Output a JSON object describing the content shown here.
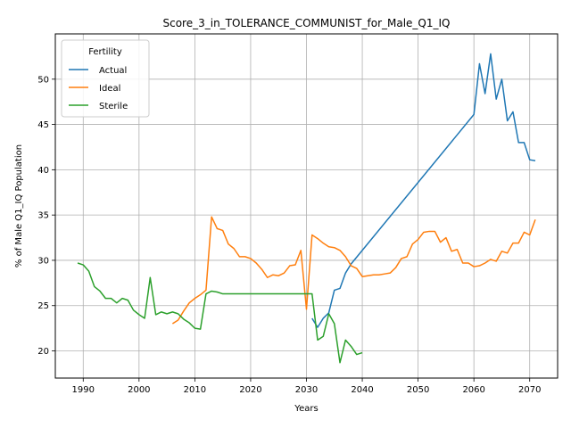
{
  "chart_data": {
    "type": "line",
    "title": "Score_3_in_TOLERANCE_COMMUNIST_for_Male_Q1_IQ",
    "xlabel": "Years",
    "ylabel": "% of Male Q1_IQ Population",
    "xlim": [
      1985,
      2075
    ],
    "ylim": [
      17,
      55
    ],
    "xticks": [
      1990,
      2000,
      2010,
      2020,
      2030,
      2040,
      2050,
      2060,
      2070
    ],
    "yticks": [
      20,
      25,
      30,
      35,
      40,
      45,
      50
    ],
    "grid": true,
    "legend": {
      "title": "Fertility",
      "placement": "top-left"
    },
    "series": [
      {
        "name": "Actual",
        "color": "#1f77b4",
        "points": [
          [
            2031,
            23.6
          ],
          [
            2032,
            22.6
          ],
          [
            2033,
            23.6
          ],
          [
            2034,
            24.2
          ],
          [
            2035,
            26.7
          ],
          [
            2036,
            26.9
          ],
          [
            2037,
            28.6
          ],
          [
            2038,
            29.6
          ],
          [
            2060,
            46.1
          ],
          [
            2061,
            51.7
          ],
          [
            2062,
            48.4
          ],
          [
            2063,
            52.8
          ],
          [
            2064,
            47.8
          ],
          [
            2065,
            50.0
          ],
          [
            2066,
            45.4
          ],
          [
            2067,
            46.4
          ],
          [
            2068,
            43.0
          ],
          [
            2069,
            43.0
          ],
          [
            2070,
            41.1
          ],
          [
            2071,
            41.0
          ]
        ]
      },
      {
        "name": "Ideal",
        "color": "#ff7f0e",
        "points": [
          [
            2006,
            23.0
          ],
          [
            2007,
            23.4
          ],
          [
            2008,
            24.4
          ],
          [
            2009,
            25.3
          ],
          [
            2010,
            25.8
          ],
          [
            2011,
            26.2
          ],
          [
            2012,
            26.7
          ],
          [
            2013,
            34.8
          ],
          [
            2014,
            33.5
          ],
          [
            2015,
            33.3
          ],
          [
            2016,
            31.8
          ],
          [
            2017,
            31.3
          ],
          [
            2018,
            30.4
          ],
          [
            2019,
            30.4
          ],
          [
            2020,
            30.2
          ],
          [
            2021,
            29.7
          ],
          [
            2022,
            29.0
          ],
          [
            2023,
            28.1
          ],
          [
            2024,
            28.4
          ],
          [
            2025,
            28.3
          ],
          [
            2026,
            28.6
          ],
          [
            2027,
            29.4
          ],
          [
            2028,
            29.5
          ],
          [
            2029,
            31.1
          ],
          [
            2030,
            24.6
          ],
          [
            2031,
            32.8
          ],
          [
            2032,
            32.4
          ],
          [
            2033,
            31.9
          ],
          [
            2034,
            31.5
          ],
          [
            2035,
            31.4
          ],
          [
            2036,
            31.1
          ],
          [
            2037,
            30.4
          ],
          [
            2038,
            29.4
          ],
          [
            2039,
            29.1
          ],
          [
            2040,
            28.2
          ],
          [
            2041,
            28.3
          ],
          [
            2042,
            28.4
          ],
          [
            2043,
            28.4
          ],
          [
            2044,
            28.5
          ],
          [
            2045,
            28.6
          ],
          [
            2046,
            29.2
          ],
          [
            2047,
            30.2
          ],
          [
            2048,
            30.4
          ],
          [
            2049,
            31.8
          ],
          [
            2050,
            32.3
          ],
          [
            2051,
            33.1
          ],
          [
            2052,
            33.2
          ],
          [
            2053,
            33.2
          ],
          [
            2054,
            32.0
          ],
          [
            2055,
            32.5
          ],
          [
            2056,
            31.0
          ],
          [
            2057,
            31.2
          ],
          [
            2058,
            29.7
          ],
          [
            2059,
            29.7
          ],
          [
            2060,
            29.3
          ],
          [
            2061,
            29.4
          ],
          [
            2062,
            29.7
          ],
          [
            2063,
            30.1
          ],
          [
            2064,
            29.9
          ],
          [
            2065,
            31.0
          ],
          [
            2066,
            30.8
          ],
          [
            2067,
            31.9
          ],
          [
            2068,
            31.9
          ],
          [
            2069,
            33.1
          ],
          [
            2070,
            32.8
          ],
          [
            2071,
            34.5
          ]
        ]
      },
      {
        "name": "Sterile",
        "color": "#2ca02c",
        "points": [
          [
            1989,
            29.7
          ],
          [
            1990,
            29.5
          ],
          [
            1991,
            28.8
          ],
          [
            1992,
            27.1
          ],
          [
            1993,
            26.6
          ],
          [
            1994,
            25.8
          ],
          [
            1995,
            25.8
          ],
          [
            1996,
            25.3
          ],
          [
            1997,
            25.8
          ],
          [
            1998,
            25.6
          ],
          [
            1999,
            24.5
          ],
          [
            2000,
            24.0
          ],
          [
            2001,
            23.6
          ],
          [
            2002,
            28.1
          ],
          [
            2003,
            24.0
          ],
          [
            2004,
            24.3
          ],
          [
            2005,
            24.1
          ],
          [
            2006,
            24.3
          ],
          [
            2007,
            24.1
          ],
          [
            2008,
            23.5
          ],
          [
            2009,
            23.1
          ],
          [
            2010,
            22.5
          ],
          [
            2011,
            22.4
          ],
          [
            2012,
            26.3
          ],
          [
            2013,
            26.6
          ],
          [
            2014,
            26.5
          ],
          [
            2015,
            26.3
          ],
          [
            2016,
            26.3
          ],
          [
            2017,
            26.3
          ],
          [
            2018,
            26.3
          ],
          [
            2019,
            26.3
          ],
          [
            2020,
            26.3
          ],
          [
            2021,
            26.3
          ],
          [
            2022,
            26.3
          ],
          [
            2023,
            26.3
          ],
          [
            2024,
            26.3
          ],
          [
            2025,
            26.3
          ],
          [
            2026,
            26.3
          ],
          [
            2027,
            26.3
          ],
          [
            2028,
            26.3
          ],
          [
            2029,
            26.3
          ],
          [
            2030,
            26.3
          ],
          [
            2031,
            26.3
          ],
          [
            2032,
            21.2
          ],
          [
            2033,
            21.6
          ],
          [
            2034,
            24.1
          ],
          [
            2035,
            23.0
          ],
          [
            2036,
            18.7
          ],
          [
            2037,
            21.2
          ],
          [
            2038,
            20.5
          ],
          [
            2039,
            19.6
          ],
          [
            2040,
            19.8
          ]
        ]
      }
    ]
  }
}
